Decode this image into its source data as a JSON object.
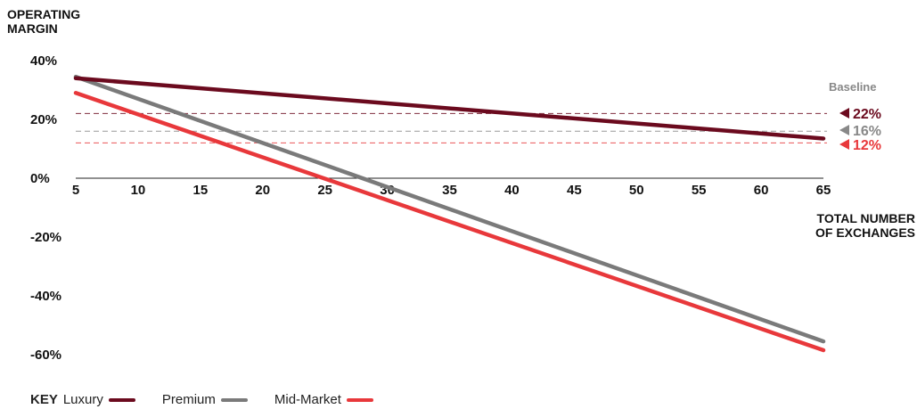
{
  "chart_data": {
    "type": "line",
    "ylabel_line1": "OPERATING",
    "ylabel_line2": "MARGIN",
    "xlabel_line1": "TOTAL NUMBER",
    "xlabel_line2": "OF EXCHANGES",
    "xlim": [
      5,
      65
    ],
    "ylim": [
      -60,
      40
    ],
    "x_ticks": [
      5,
      10,
      15,
      20,
      25,
      30,
      35,
      40,
      45,
      50,
      55,
      60,
      65
    ],
    "y_ticks": [
      40,
      20,
      0,
      -20,
      -40,
      -60
    ],
    "y_tick_labels": [
      "40%",
      "20%",
      "0%",
      "-20%",
      "-40%",
      "-60%"
    ],
    "series": [
      {
        "name": "Luxury",
        "color": "#6b0a1e",
        "points": [
          [
            5,
            34
          ],
          [
            65,
            13.5
          ]
        ]
      },
      {
        "name": "Premium",
        "color": "#7a7a7a",
        "points": [
          [
            5,
            34.5
          ],
          [
            65,
            -55.5
          ]
        ]
      },
      {
        "name": "Mid-Market",
        "color": "#e8383b",
        "points": [
          [
            5,
            29
          ],
          [
            65,
            -58.5
          ]
        ]
      }
    ],
    "baselines": {
      "title": "Baseline",
      "items": [
        {
          "label": "22%",
          "value": 22,
          "color": "#6b0a1e"
        },
        {
          "label": "16%",
          "value": 16,
          "color": "#888888"
        },
        {
          "label": "12%",
          "value": 12,
          "color": "#e8383b"
        }
      ]
    },
    "legend": {
      "title": "KEY",
      "placement": "bottom-left"
    }
  }
}
